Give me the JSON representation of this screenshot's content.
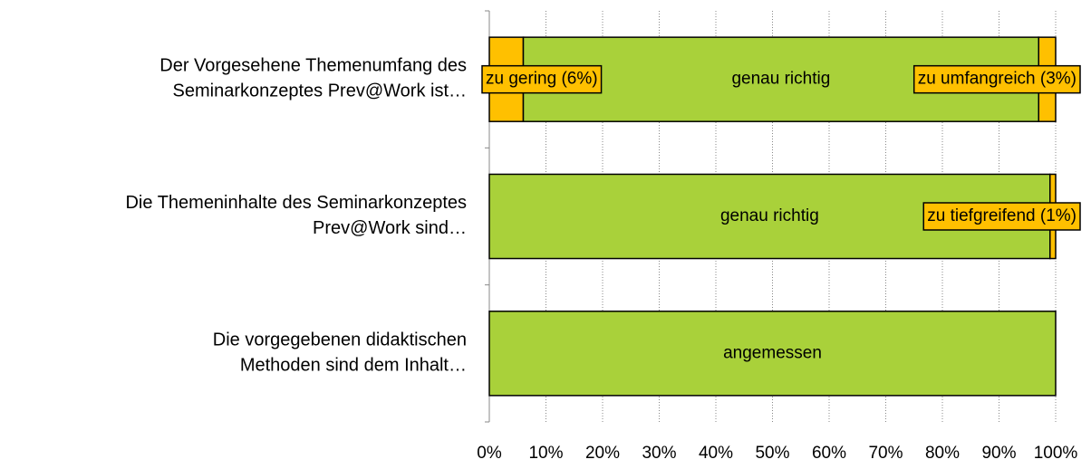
{
  "chart_data": {
    "type": "stacked-bar-horizontal",
    "categories": [
      "Der Vorgesehene Themenumfang des\nSeminarkonzeptes Prev@Work ist…",
      "Die Themeninhalte des Seminarkonzeptes\nPrev@Work sind…",
      "Die vorgegebenen didaktischen\nMethoden sind dem Inhalt…"
    ],
    "series": [
      {
        "color": "#ffc000",
        "values": [
          6,
          null,
          null
        ],
        "value_labels": [
          "zu gering (6%)",
          null,
          null
        ]
      },
      {
        "color": "#a9d13a",
        "values": [
          91,
          99,
          null
        ],
        "value_labels": [
          "genau richtig",
          "genau richtig",
          null
        ]
      },
      {
        "color": "#ffc000",
        "values": [
          3,
          null,
          null
        ],
        "value_labels": [
          "zu umfangreich (3%)",
          null,
          null
        ]
      },
      {
        "color": "#ffc000",
        "values": [
          null,
          1,
          null
        ],
        "value_labels": [
          null,
          "zu tiefgreifend (1%)",
          null
        ]
      },
      {
        "color": "#a9d13a",
        "values": [
          null,
          null,
          100
        ],
        "value_labels": [
          null,
          null,
          "angemessen"
        ]
      }
    ],
    "xlim": [
      0,
      100
    ],
    "xticks": [
      {
        "value": 0,
        "label": "0%"
      },
      {
        "value": 10,
        "label": "10%"
      },
      {
        "value": 20,
        "label": "20%"
      },
      {
        "value": 30,
        "label": "30%"
      },
      {
        "value": 40,
        "label": "40%"
      },
      {
        "value": 50,
        "label": "50%"
      },
      {
        "value": 60,
        "label": "60%"
      },
      {
        "value": 70,
        "label": "70%"
      },
      {
        "value": 80,
        "label": "80%"
      },
      {
        "value": 90,
        "label": "90%"
      },
      {
        "value": 100,
        "label": "100%"
      }
    ],
    "grid": true
  }
}
